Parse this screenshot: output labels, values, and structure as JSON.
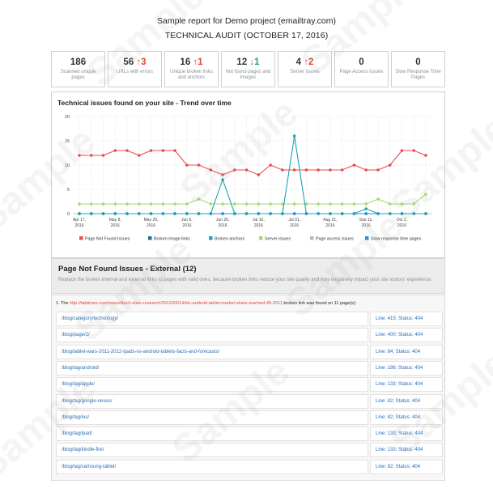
{
  "report": {
    "title": "Sample report for Demo project (emailtray.com)",
    "subtitle": "TECHNICAL AUDIT (OCTOBER 17, 2016)"
  },
  "stats": [
    {
      "value": "186",
      "delta": "",
      "dir": "",
      "label": "Scanned unique pages"
    },
    {
      "value": "56",
      "delta": "3",
      "dir": "up",
      "label": "URLs with errors"
    },
    {
      "value": "16",
      "delta": "1",
      "dir": "up",
      "label": "Unique broken links and anchors"
    },
    {
      "value": "12",
      "delta": "1",
      "dir": "down",
      "label": "Not found pages and images"
    },
    {
      "value": "4",
      "delta": "2",
      "dir": "up",
      "label": "Server issues"
    },
    {
      "value": "0",
      "delta": "",
      "dir": "",
      "label": "Page Access Issues"
    },
    {
      "value": "0",
      "delta": "",
      "dir": "",
      "label": "Slow Response Time Pages"
    }
  ],
  "chart_title": "Technical issues found on your site - Trend over time",
  "chart_data": {
    "type": "line",
    "title": "Technical issues found on your site - Trend over time",
    "ylim": [
      0,
      20
    ],
    "yticks": [
      "0",
      "5",
      "10",
      "15",
      "20"
    ],
    "xticks": [
      {
        "label": [
          "Apr 17,",
          "2016"
        ],
        "idx": 0
      },
      {
        "label": [
          "May 8,",
          "2016"
        ],
        "idx": 3
      },
      {
        "label": [
          "May 29,",
          "2016"
        ],
        "idx": 6
      },
      {
        "label": [
          "Jun 5,",
          "2016"
        ],
        "idx": 9
      },
      {
        "label": [
          "Jun 26,",
          "2016"
        ],
        "idx": 12
      },
      {
        "label": [
          "Jul 10,",
          "2016"
        ],
        "idx": 15
      },
      {
        "label": [
          "Jul 31,",
          "2016"
        ],
        "idx": 18
      },
      {
        "label": [
          "Aug 21,",
          "2016"
        ],
        "idx": 21
      },
      {
        "label": [
          "Sep 11,",
          "2016"
        ],
        "idx": 24
      },
      {
        "label": [
          "Oct 2,",
          "2016"
        ],
        "idx": 27
      }
    ],
    "series": [
      {
        "name": "Page Not Found Issues",
        "color": "#e94b4b",
        "values": [
          12,
          12,
          12,
          13,
          13,
          12,
          13,
          13,
          13,
          10,
          10,
          9,
          8,
          9,
          9,
          8,
          10,
          9,
          9,
          9,
          9,
          9,
          9,
          10,
          9,
          9,
          10,
          13,
          13,
          12
        ]
      },
      {
        "name": "Broken image links",
        "color": "#1f6f8b",
        "values": [
          0,
          0,
          0,
          0,
          0,
          0,
          0,
          0,
          0,
          0,
          0,
          0,
          0,
          0,
          0,
          0,
          0,
          0,
          0,
          0,
          0,
          0,
          0,
          0,
          0,
          0,
          0,
          0,
          0,
          0
        ]
      },
      {
        "name": "Broken anchors",
        "color": "#1aa5b4",
        "values": [
          0,
          0,
          0,
          0,
          0,
          0,
          0,
          0,
          0,
          0,
          0,
          0,
          7,
          0,
          0,
          0,
          0,
          0,
          16,
          0,
          0,
          0,
          0,
          0,
          1,
          0,
          0,
          0,
          0,
          0
        ]
      },
      {
        "name": "Server issues",
        "color": "#a6d96a",
        "values": [
          2,
          2,
          2,
          2,
          2,
          2,
          2,
          2,
          2,
          2,
          3,
          2,
          2,
          2,
          2,
          2,
          2,
          2,
          2,
          2,
          2,
          2,
          2,
          2,
          2,
          3,
          2,
          2,
          2,
          4
        ]
      },
      {
        "name": "Page access issues",
        "color": "#b8b4cc",
        "values": [
          0,
          0,
          0,
          0,
          0,
          0,
          0,
          0,
          0,
          0,
          0,
          0,
          0,
          0,
          0,
          0,
          0,
          0,
          0,
          0,
          0,
          0,
          0,
          0,
          0,
          0,
          0,
          0,
          0,
          0
        ]
      },
      {
        "name": "Slow response time pages",
        "color": "#2b8fd6",
        "values": [
          0,
          0,
          0,
          0,
          0,
          0,
          0,
          0,
          0,
          0,
          0,
          0,
          0,
          0,
          0,
          0,
          0,
          0,
          0,
          0,
          0,
          0,
          0,
          0,
          0,
          0,
          0,
          0,
          0,
          0
        ]
      }
    ]
  },
  "not_found": {
    "title": "Page Not Found Issues - External (12)",
    "description": "Replace the broken internal and external links to pages with valid ones, because broken links reduce your site quality and may negatively impact your site visitors' experience."
  },
  "broken_link": {
    "prefix": "1. The",
    "url": "http://tabtimes.com/news/ittech-stats-research/2012/03/14/idc-android-tablet-market-share-reached-45-2011",
    "suffix": "broken link was found on 11 page(s):"
  },
  "pages": [
    {
      "path": "/blog/category/technology/",
      "status": "Line: 415; Status: 404"
    },
    {
      "path": "/blog/page/2/",
      "status": "Line: 400; Status: 404"
    },
    {
      "path": "/blog/tablet-wars-2011-2012-ipads-vs-android-tablets-facts-and-forecasts/",
      "status": "Line: 84; Status: 404"
    },
    {
      "path": "/blog/tag/android/",
      "status": "Line: 186; Status: 404"
    },
    {
      "path": "/blog/tag/apple/",
      "status": "Line: 133; Status: 404"
    },
    {
      "path": "/blog/tag/google-nexus/",
      "status": "Line: 82; Status: 404"
    },
    {
      "path": "/blog/tag/ios/",
      "status": "Line: 82; Status: 404"
    },
    {
      "path": "/blog/tag/ipad/",
      "status": "Line: 133; Status: 404"
    },
    {
      "path": "/blog/tag/kindle-fire/",
      "status": "Line: 133; Status: 404"
    },
    {
      "path": "/blog/tag/samsung-tablet/",
      "status": "Line: 82; Status: 404"
    }
  ],
  "watermark": "Sample"
}
